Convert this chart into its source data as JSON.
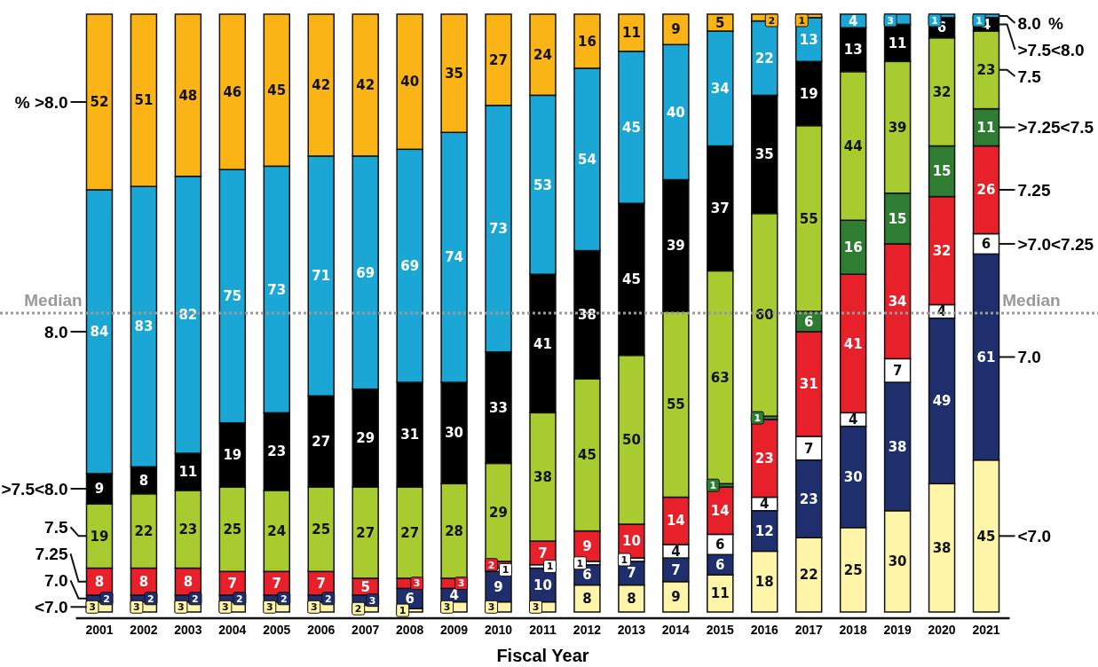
{
  "chart_data": {
    "type": "bar",
    "stacked": true,
    "data_labels": true,
    "xlabel": "Fiscal Year",
    "categories": [
      "2001",
      "2002",
      "2003",
      "2004",
      "2005",
      "2006",
      "2007",
      "2008",
      "2009",
      "2010",
      "2011",
      "2012",
      "2013",
      "2014",
      "2015",
      "2016",
      "2017",
      "2018",
      "2019",
      "2020",
      "2021"
    ],
    "series": [
      {
        "name": "<7.0",
        "color": "#fff5a8",
        "values": [
          3,
          3,
          3,
          3,
          3,
          3,
          2,
          1,
          3,
          3,
          3,
          8,
          8,
          9,
          11,
          18,
          22,
          25,
          30,
          38,
          45
        ]
      },
      {
        "name": "7.0",
        "color": "#1f2f6e",
        "values": [
          2,
          2,
          2,
          2,
          2,
          2,
          3,
          6,
          4,
          9,
          10,
          6,
          7,
          7,
          6,
          12,
          23,
          30,
          38,
          49,
          61
        ]
      },
      {
        "name": ">7.0<7.25",
        "color": "#ffffff",
        "values": [
          null,
          null,
          null,
          null,
          null,
          null,
          null,
          null,
          null,
          1,
          1,
          1,
          1,
          4,
          6,
          4,
          7,
          4,
          7,
          4,
          6
        ]
      },
      {
        "name": "7.25",
        "color": "#e8202a",
        "values": [
          8,
          8,
          8,
          7,
          7,
          7,
          5,
          3,
          3,
          2,
          7,
          9,
          10,
          14,
          14,
          23,
          31,
          41,
          34,
          32,
          26
        ]
      },
      {
        "name": ">7.25<7.5",
        "color": "#2e7d32",
        "values": [
          null,
          null,
          null,
          null,
          null,
          null,
          null,
          null,
          null,
          null,
          null,
          null,
          null,
          null,
          1,
          1,
          6,
          16,
          15,
          15,
          11
        ]
      },
      {
        "name": "7.5",
        "color": "#a8cc30",
        "values": [
          19,
          22,
          23,
          25,
          24,
          25,
          27,
          27,
          28,
          29,
          38,
          45,
          50,
          55,
          63,
          60,
          55,
          44,
          39,
          32,
          23
        ]
      },
      {
        "name": ">7.5<8.0",
        "color": "#000000",
        "values": [
          9,
          8,
          11,
          19,
          23,
          27,
          29,
          31,
          30,
          33,
          41,
          38,
          45,
          39,
          37,
          35,
          19,
          13,
          11,
          6,
          4
        ]
      },
      {
        "name": "8.0",
        "color": "#1aa7d6",
        "values": [
          84,
          83,
          82,
          75,
          73,
          71,
          69,
          69,
          74,
          73,
          53,
          54,
          45,
          40,
          34,
          22,
          13,
          4,
          3,
          1,
          1
        ]
      },
      {
        "name": "% >8.0",
        "color": "#fbb416",
        "values": [
          52,
          51,
          48,
          46,
          45,
          42,
          42,
          40,
          35,
          27,
          24,
          16,
          11,
          9,
          5,
          2,
          1,
          null,
          null,
          null,
          null
        ]
      }
    ],
    "ref_lines": [
      {
        "axis": "y",
        "value": 88.5,
        "label": "Median",
        "color": "#999999",
        "line_style": "dotted"
      }
    ],
    "annotations": [
      "%"
    ],
    "legend": "right"
  }
}
